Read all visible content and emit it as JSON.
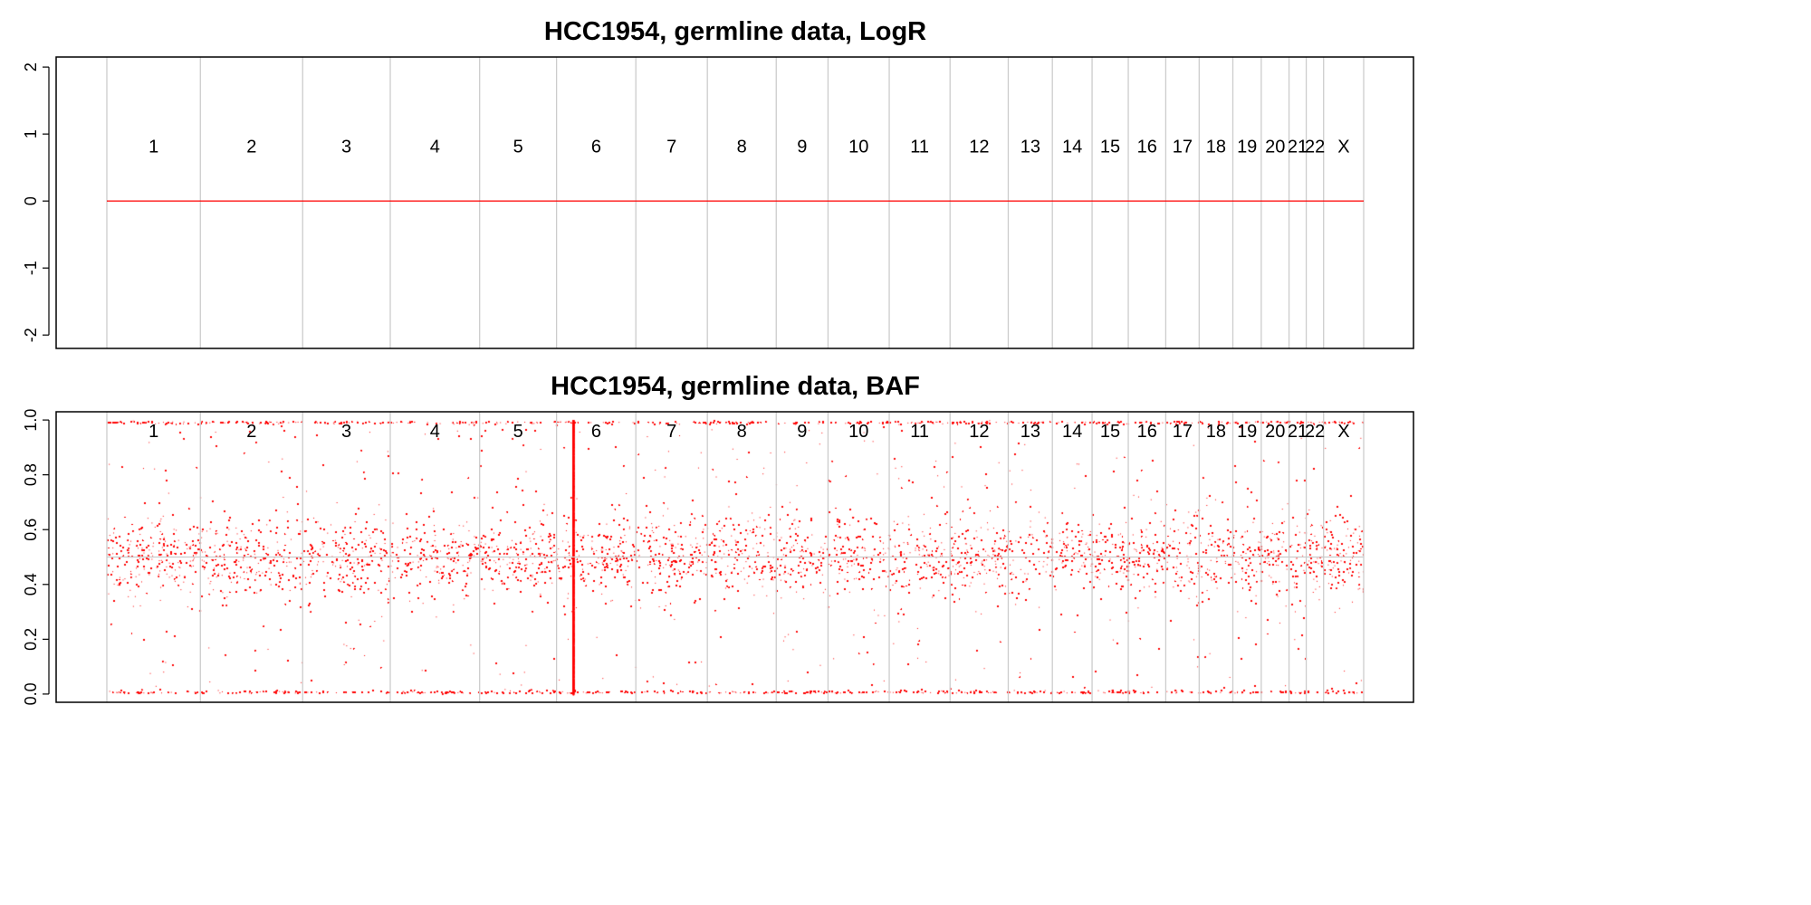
{
  "chart_data": [
    {
      "type": "scatter",
      "title": "HCC1954, germline data, LogR",
      "xlabel": "",
      "ylabel": "",
      "ylim": [
        -2.2,
        2.15
      ],
      "yticks": [
        -2,
        -1,
        0,
        1,
        2
      ],
      "ytick_labels": [
        "-2",
        "-1",
        "0",
        "1",
        "2"
      ],
      "label_y": 0.82,
      "grid": "vertical chromosome boundaries",
      "point_color": "#ff0000",
      "series": [
        {
          "values_description_constant": 0
        }
      ],
      "logr_value": 0
    },
    {
      "type": "scatter",
      "title": "HCC1954, germline data, BAF",
      "xlabel": "",
      "ylabel": "",
      "ylim": [
        -0.03,
        1.03
      ],
      "yticks": [
        0.0,
        0.2,
        0.4,
        0.6,
        0.8,
        1.0
      ],
      "ytick_labels": [
        "0.0",
        "0.2",
        "0.4",
        "0.6",
        "0.8",
        "1.0"
      ],
      "label_y": 0.96,
      "grid": "vertical chromosome boundaries",
      "point_color": "#ff0000",
      "baf_center": 0.5,
      "baf_band_sd": 0.07,
      "baf_homozygous": [
        0.005,
        0.995
      ]
    }
  ],
  "chromosomes": {
    "labels": [
      "1",
      "2",
      "3",
      "4",
      "5",
      "6",
      "7",
      "8",
      "9",
      "10",
      "11",
      "12",
      "13",
      "14",
      "15",
      "16",
      "17",
      "18",
      "19",
      "20",
      "21",
      "22",
      "X"
    ],
    "boundaries_genome_fraction": [
      0,
      0.0744,
      0.1558,
      0.2255,
      0.2966,
      0.3578,
      0.4209,
      0.4778,
      0.5326,
      0.5738,
      0.6225,
      0.6709,
      0.7172,
      0.7523,
      0.7839,
      0.8127,
      0.8425,
      0.8691,
      0.8959,
      0.9185,
      0.9406,
      0.9543,
      0.9681,
      1.0
    ]
  }
}
